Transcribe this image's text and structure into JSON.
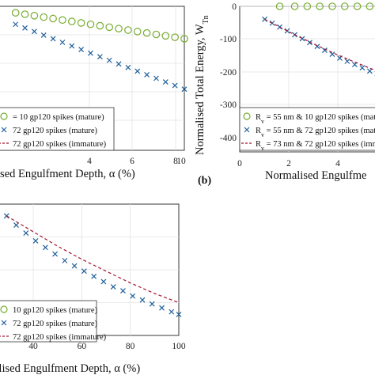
{
  "chart_data": [
    {
      "id": "a",
      "type": "scatter",
      "xlim": [
        0,
        10
      ],
      "x_ticks": [
        "4",
        "6",
        "8",
        "10"
      ],
      "xlabel": "lised Engulfment Depth, α (%)",
      "ylim": [
        -400,
        0
      ],
      "grid": true,
      "legend_location": "bottom-left",
      "series": [
        {
          "name": "= 10 gp120 spikes (mature)",
          "marker": "circle",
          "color": "#77ac30",
          "x": [
            1.0,
            1.5,
            2.0,
            2.5,
            3.0,
            3.5,
            4.0,
            4.5,
            5.0,
            5.5,
            6.0,
            6.5,
            7.0,
            7.5,
            8.0,
            8.5,
            9.0,
            9.5,
            10.0
          ],
          "y": [
            -18,
            -22,
            -26,
            -30,
            -34,
            -38,
            -42,
            -46,
            -50,
            -54,
            -58,
            -62,
            -66,
            -70,
            -74,
            -78,
            -82,
            -86,
            -90
          ]
        },
        {
          "name": "72 gp120 spikes (mature)",
          "marker": "x",
          "color": "#1f5f9a",
          "x": [
            1.0,
            1.5,
            2.0,
            2.5,
            3.0,
            3.5,
            4.0,
            4.5,
            5.0,
            5.5,
            6.0,
            6.5,
            7.0,
            7.5,
            8.0,
            8.5,
            9.0,
            9.5,
            10.0
          ],
          "y": [
            -50,
            -60,
            -70,
            -80,
            -90,
            -100,
            -110,
            -120,
            -130,
            -140,
            -150,
            -160,
            -170,
            -180,
            -190,
            -200,
            -210,
            -220,
            -230
          ]
        },
        {
          "name": "72 gp120 spikes (immature)",
          "marker": "dashed-line",
          "color": "#a2142f",
          "x": [],
          "y": []
        }
      ]
    },
    {
      "id": "b",
      "panel_label": "(b)",
      "type": "scatter",
      "xlim": [
        0,
        5.6
      ],
      "x_ticks": [
        "0",
        "2",
        "4"
      ],
      "xlabel": "Normalised Engulfme",
      "ylim": [
        -450,
        0
      ],
      "y_ticks": [
        "0",
        "-100",
        "-200",
        "-300",
        "-400"
      ],
      "ylabel": "Normalised Total Energy, W",
      "ylabel_sub": "Tn",
      "grid": true,
      "legend_location": "bottom-left",
      "series": [
        {
          "name": "R",
          "name_sub": "v",
          "name_rest": " = 55 nm & 10 gp120 spikes (mat",
          "marker": "circle",
          "color": "#77ac30",
          "x": [
            1.6,
            2.2,
            2.7,
            3.2,
            3.7,
            4.2,
            4.7,
            5.2
          ],
          "y": [
            0,
            0,
            0,
            0,
            0,
            0,
            0,
            0
          ]
        },
        {
          "name": "R",
          "name_sub": "v",
          "name_rest": " = 55 nm & 72 gp120 spikes (mat",
          "marker": "x",
          "color": "#1f5f9a",
          "x": [
            1.0,
            1.3,
            1.6,
            1.9,
            2.2,
            2.5,
            2.8,
            3.1,
            3.4,
            3.7,
            4.0,
            4.3,
            4.6,
            4.9,
            5.2,
            5.5
          ],
          "y": [
            -40,
            -52,
            -64,
            -76,
            -88,
            -100,
            -112,
            -124,
            -136,
            -148,
            -160,
            -170,
            -180,
            -190,
            -200,
            -208
          ]
        },
        {
          "name": "R",
          "name_sub": "v",
          "name_rest": " = 73 nm & 72 gp120 spikes (imma",
          "marker": "dashed-line",
          "color": "#a2142f",
          "x": [
            1.0,
            2.0,
            3.0,
            4.0,
            5.0,
            5.6
          ],
          "y": [
            -40,
            -80,
            -118,
            -153,
            -185,
            -203
          ]
        }
      ]
    },
    {
      "id": "c",
      "type": "scatter",
      "xlim": [
        25,
        100
      ],
      "x_ticks": [
        "40",
        "60",
        "80",
        "100"
      ],
      "xlabel": "alised Engulfment Depth, α (%)",
      "ylim": [
        0,
        1
      ],
      "grid": true,
      "legend_location": "bottom-left",
      "series": [
        {
          "name": "10 gp120 spikes (mature)",
          "marker": "circle",
          "color": "#77ac30",
          "x": [],
          "y": []
        },
        {
          "name": "72 gp120 spikes (mature)",
          "marker": "x",
          "color": "#1f5f9a",
          "x": [
            29,
            33,
            37,
            41,
            45,
            49,
            53,
            57,
            61,
            65,
            69,
            73,
            77,
            81,
            85,
            89,
            93,
            97,
            100
          ],
          "y": [
            0.91,
            0.84,
            0.78,
            0.72,
            0.67,
            0.62,
            0.57,
            0.53,
            0.49,
            0.45,
            0.41,
            0.37,
            0.34,
            0.3,
            0.27,
            0.24,
            0.21,
            0.18,
            0.16
          ]
        },
        {
          "name": "72 gp120 spikes (immature)",
          "marker": "dashed-line",
          "color": "#a2142f",
          "x": [
            29,
            40,
            50,
            60,
            70,
            80,
            90,
            100
          ],
          "y": [
            0.91,
            0.79,
            0.68,
            0.58,
            0.49,
            0.4,
            0.32,
            0.25
          ]
        }
      ]
    }
  ]
}
